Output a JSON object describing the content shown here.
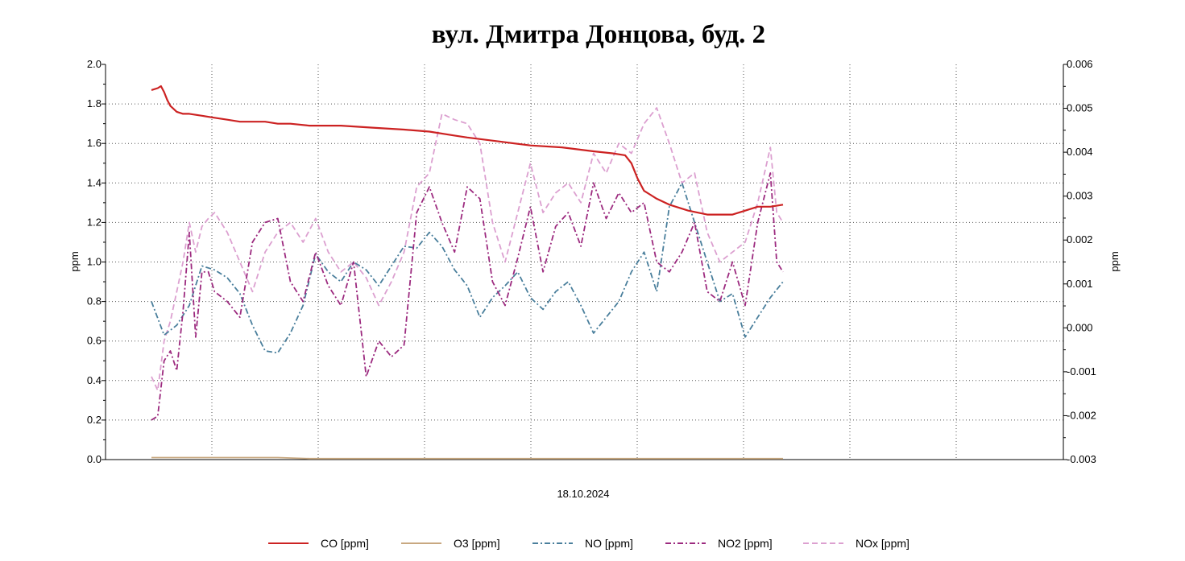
{
  "chart_data": {
    "type": "line",
    "title": "вул. Дмитра Донцова, буд. 2",
    "xlabel": "18.10.2024",
    "ylabel_left": "ppm",
    "ylabel_right": "ppm",
    "ylim_left": [
      0,
      2.0
    ],
    "ylim_right": [
      -0.003,
      0.006
    ],
    "yticks_left": [
      "0.0",
      "0.2",
      "0.4",
      "0.6",
      "0.8",
      "1.0",
      "1.2",
      "1.4",
      "1.6",
      "1.8",
      "2.0"
    ],
    "yticks_right": [
      "-0.003",
      "-0.002",
      "-0.001",
      "0.000",
      "0.001",
      "0.002",
      "0.003",
      "0.004",
      "0.005",
      "0.006"
    ],
    "xlim": [
      0,
      100
    ],
    "grid": true,
    "legend_position": "bottom",
    "series": [
      {
        "name": "CO [ppm]",
        "axis": "left",
        "color": "#cc2222",
        "dash": "solid",
        "x": [
          0,
          1,
          1.5,
          2,
          2.5,
          3,
          4,
          5,
          6,
          8,
          10,
          12,
          14,
          16,
          18,
          20,
          22,
          25,
          28,
          30,
          35,
          40,
          44,
          48,
          50,
          55,
          60,
          65,
          70,
          73,
          75,
          76,
          77,
          78,
          79,
          80,
          82,
          85,
          88,
          90,
          92,
          94,
          96,
          98,
          100
        ],
        "y": [
          1.87,
          1.88,
          1.89,
          1.86,
          1.82,
          1.79,
          1.76,
          1.75,
          1.75,
          1.74,
          1.73,
          1.72,
          1.71,
          1.71,
          1.71,
          1.7,
          1.7,
          1.69,
          1.69,
          1.69,
          1.68,
          1.67,
          1.66,
          1.64,
          1.63,
          1.61,
          1.59,
          1.58,
          1.56,
          1.55,
          1.54,
          1.5,
          1.42,
          1.36,
          1.34,
          1.32,
          1.29,
          1.26,
          1.24,
          1.24,
          1.24,
          1.26,
          1.28,
          1.28,
          1.29
        ]
      },
      {
        "name": "O3 [ppm]",
        "axis": "left",
        "color": "#c8a880",
        "dash": "solid",
        "x": [
          0,
          10,
          15,
          20,
          25,
          30,
          40,
          50,
          60,
          70,
          80,
          90,
          100
        ],
        "y": [
          0.01,
          0.01,
          0.01,
          0.01,
          0.005,
          0.005,
          0.005,
          0.005,
          0.005,
          0.005,
          0.005,
          0.005,
          0.005
        ]
      },
      {
        "name": "NO [ppm]",
        "axis": "left",
        "color": "#4a7f9c",
        "dash": "dashdot",
        "x": [
          0,
          2,
          4,
          6,
          8,
          10,
          12,
          14,
          16,
          18,
          20,
          22,
          24,
          26,
          28,
          30,
          32,
          34,
          36,
          38,
          40,
          42,
          44,
          46,
          48,
          50,
          52,
          54,
          56,
          58,
          60,
          62,
          64,
          66,
          68,
          70,
          72,
          74,
          76,
          78,
          80,
          82,
          84,
          86,
          88,
          90,
          92,
          94,
          96,
          98,
          100
        ],
        "y": [
          0.8,
          0.63,
          0.68,
          0.78,
          0.98,
          0.96,
          0.92,
          0.84,
          0.68,
          0.55,
          0.54,
          0.64,
          0.78,
          1.04,
          0.95,
          0.9,
          1.0,
          0.96,
          0.88,
          0.98,
          1.08,
          1.07,
          1.15,
          1.08,
          0.96,
          0.88,
          0.72,
          0.82,
          0.88,
          0.95,
          0.82,
          0.76,
          0.85,
          0.9,
          0.78,
          0.64,
          0.72,
          0.8,
          0.95,
          1.05,
          0.85,
          1.28,
          1.4,
          1.2,
          1.0,
          0.8,
          0.84,
          0.62,
          0.72,
          0.82,
          0.9
        ]
      },
      {
        "name": "NO2 [ppm]",
        "axis": "left",
        "color": "#9c2a7f",
        "dash": "dashdot",
        "x": [
          0,
          1,
          2,
          3,
          4,
          5,
          6,
          7,
          8,
          9,
          10,
          12,
          14,
          16,
          18,
          20,
          22,
          24,
          26,
          28,
          30,
          32,
          34,
          36,
          38,
          40,
          42,
          44,
          46,
          48,
          50,
          52,
          54,
          56,
          58,
          60,
          62,
          64,
          66,
          68,
          70,
          72,
          74,
          76,
          78,
          80,
          82,
          84,
          86,
          88,
          90,
          92,
          94,
          96,
          98,
          99,
          100
        ],
        "y": [
          0.2,
          0.22,
          0.5,
          0.55,
          0.45,
          0.75,
          1.15,
          0.62,
          0.95,
          0.95,
          0.85,
          0.8,
          0.72,
          1.1,
          1.2,
          1.22,
          0.9,
          0.8,
          1.05,
          0.88,
          0.78,
          1.0,
          0.42,
          0.6,
          0.52,
          0.58,
          1.25,
          1.38,
          1.2,
          1.05,
          1.38,
          1.32,
          0.9,
          0.78,
          1.02,
          1.28,
          0.95,
          1.18,
          1.25,
          1.08,
          1.4,
          1.22,
          1.35,
          1.25,
          1.3,
          1.0,
          0.95,
          1.05,
          1.2,
          0.85,
          0.8,
          1.0,
          0.78,
          1.2,
          1.45,
          1.0,
          0.95
        ]
      },
      {
        "name": "NOx [ppm]",
        "axis": "left",
        "color": "#dca0d0",
        "dash": "dashed",
        "x": [
          0,
          1,
          2,
          3,
          4,
          5,
          6,
          7,
          8,
          9,
          10,
          12,
          14,
          16,
          18,
          20,
          22,
          24,
          26,
          28,
          30,
          32,
          34,
          36,
          38,
          40,
          42,
          44,
          46,
          48,
          50,
          52,
          54,
          56,
          58,
          60,
          62,
          64,
          66,
          68,
          70,
          72,
          74,
          76,
          78,
          80,
          82,
          84,
          86,
          88,
          90,
          92,
          94,
          96,
          98,
          99,
          100
        ],
        "y": [
          0.42,
          0.35,
          0.6,
          0.7,
          0.85,
          1.0,
          1.2,
          1.05,
          1.18,
          1.22,
          1.25,
          1.15,
          1.0,
          0.85,
          1.05,
          1.15,
          1.2,
          1.1,
          1.22,
          1.05,
          0.95,
          1.0,
          0.92,
          0.78,
          0.9,
          1.05,
          1.38,
          1.45,
          1.75,
          1.72,
          1.7,
          1.6,
          1.2,
          1.0,
          1.25,
          1.5,
          1.25,
          1.35,
          1.4,
          1.3,
          1.55,
          1.45,
          1.6,
          1.55,
          1.7,
          1.78,
          1.6,
          1.4,
          1.45,
          1.15,
          1.0,
          1.05,
          1.1,
          1.3,
          1.58,
          1.25,
          1.2
        ]
      }
    ]
  }
}
